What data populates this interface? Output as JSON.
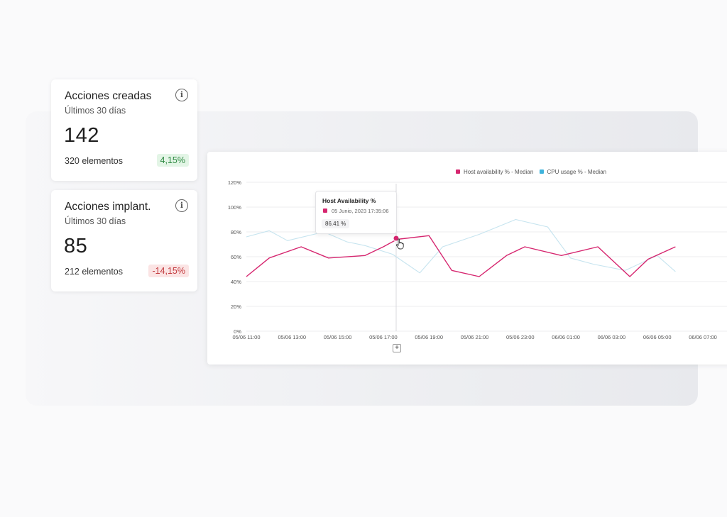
{
  "kpi_cards": [
    {
      "title": "Acciones creadas",
      "subtitle": "Últimos 30 días",
      "value": "142",
      "meta": "320 elementos",
      "change": "4,15%",
      "trend": "up"
    },
    {
      "title": "Acciones implant.",
      "subtitle": "Últimos 30 días",
      "value": "85",
      "meta": "212 elementos",
      "change": "-14,15%",
      "trend": "down"
    }
  ],
  "colors": {
    "host_series": "#d6266f",
    "cpu_series": "#c6e4ef",
    "cpu_legend": "#3fb3dc",
    "badge_up_text": "#2f8a43",
    "badge_down_text": "#c2393d"
  },
  "icons": {
    "info": "info-icon",
    "add": "plus-icon",
    "cursor": "pointer-hand-icon"
  },
  "info_glyph": "i",
  "tooltip": {
    "title": "Host Availability %",
    "date": "05 Junio, 2023 17:35:06",
    "value": "86.41 %"
  },
  "add_button_label": "+",
  "chart_data": {
    "type": "line",
    "categories": [
      "05/06 11:00",
      "05/06 13:00",
      "05/06 15:00",
      "05/06 17:00",
      "05/06 19:00",
      "05/06 21:00",
      "05/06 23:00",
      "06/06 01:00",
      "06/06 03:00",
      "06/06 05:00",
      "06/06 07:00"
    ],
    "y_ticks": [
      "0%",
      "20%",
      "40%",
      "60%",
      "80%",
      "100%",
      "120%"
    ],
    "ylim": [
      0,
      120
    ],
    "grid": true,
    "legend_position": "top",
    "series": [
      {
        "name": "Host availability % - Median",
        "color": "#d6266f",
        "x": [
          0,
          0.5,
          1.2,
          1.8,
          2.6,
          3.0,
          3.3,
          4.0,
          4.5,
          5.1,
          5.7,
          6.1,
          6.9,
          7.7,
          8.4,
          8.8,
          9.4
        ],
        "values": [
          44,
          59,
          68,
          59,
          61,
          68,
          74,
          77,
          49,
          44,
          61,
          68,
          61,
          68,
          44,
          58,
          68
        ]
      },
      {
        "name": "CPU usage % - Median",
        "color": "#c6e4ef",
        "x": [
          0,
          0.5,
          0.9,
          1.7,
          2.2,
          2.6,
          3.2,
          3.8,
          4.3,
          5.1,
          5.9,
          6.6,
          7.1,
          7.6,
          8.3,
          9.0,
          9.4
        ],
        "values": [
          76,
          81,
          73,
          80,
          72,
          69,
          62,
          47,
          68,
          78,
          90,
          84,
          59,
          54,
          49,
          61,
          48
        ]
      }
    ]
  }
}
